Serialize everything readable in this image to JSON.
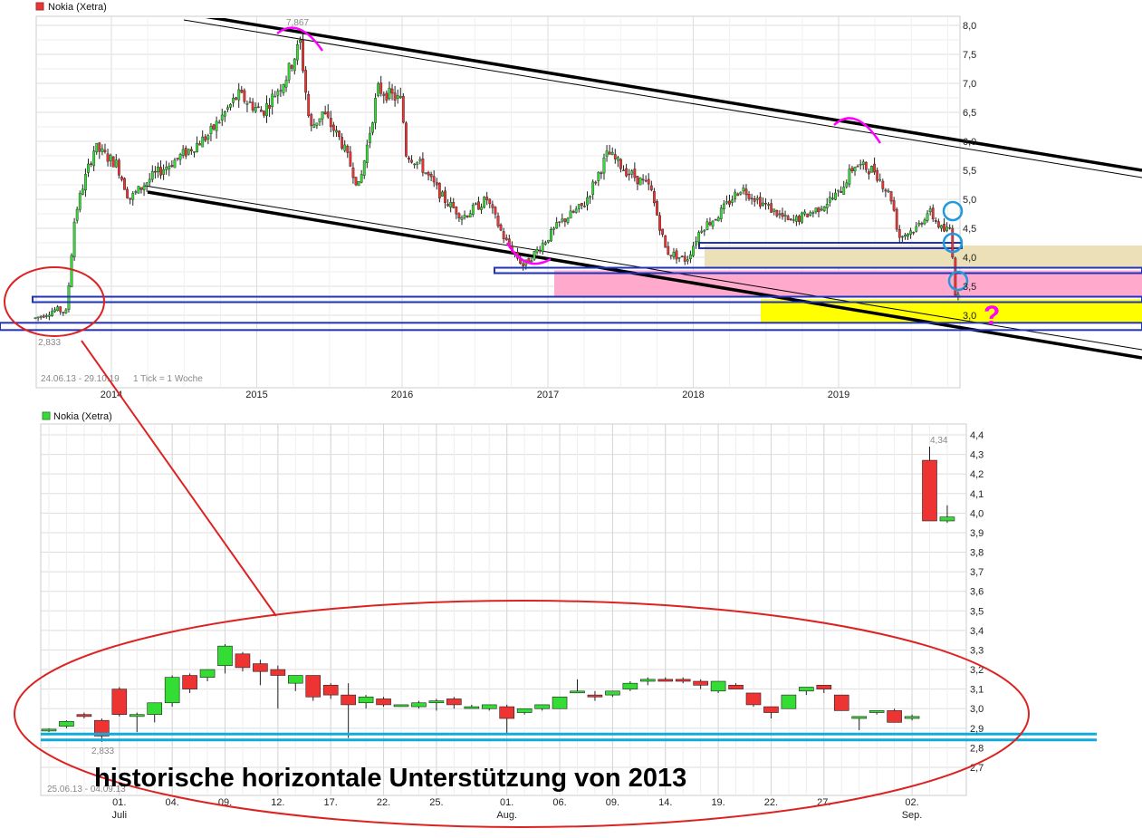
{
  "colors": {
    "up": "#33dd33",
    "down": "#ee3333",
    "channel": "#000000",
    "support": "#2233bb",
    "support_light": "#11aadd",
    "annotation": "#dd2222",
    "marker": "#ff00ff",
    "circle": "#2299dd",
    "zone_beige": "#ece0b8",
    "zone_pink": "#ffaacc",
    "zone_yellow": "#ffff00"
  },
  "chart_data": [
    {
      "type": "candlestick",
      "legend": "Nokia (Xetra)",
      "range_label": "24.06.13 - 29.10.19",
      "interval_label": "1 Tick = 1 Woche",
      "x_ticks": [
        "2014",
        "2015",
        "2016",
        "2017",
        "2018",
        "2019"
      ],
      "y_ticks": [
        "3,0",
        "3,5",
        "4,0",
        "4,5",
        "5,0",
        "5,5",
        "6,0",
        "6,5",
        "7,0",
        "7,5",
        "8,0"
      ],
      "ylim": [
        2.7,
        8.1
      ],
      "high_label": "7,867",
      "low_label": "2,833",
      "question_mark": "?",
      "support_levels": [
        4.25,
        3.82,
        3.32,
        2.87
      ],
      "anchors": [
        [
          "2013-06-24",
          2.95
        ],
        [
          "2013-08-15",
          3.1
        ],
        [
          "2013-09-10",
          3.05
        ],
        [
          "2013-10-01",
          4.7
        ],
        [
          "2013-10-20",
          5.2
        ],
        [
          "2013-11-20",
          5.9
        ],
        [
          "2014-01-15",
          5.6
        ],
        [
          "2014-02-15",
          5.0
        ],
        [
          "2014-04-15",
          5.4
        ],
        [
          "2014-06-15",
          5.7
        ],
        [
          "2014-09-01",
          6.1
        ],
        [
          "2014-11-15",
          6.8
        ],
        [
          "2015-01-15",
          6.5
        ],
        [
          "2015-03-15",
          7.1
        ],
        [
          "2015-04-20",
          7.7
        ],
        [
          "2015-05-15",
          6.2
        ],
        [
          "2015-06-15",
          6.5
        ],
        [
          "2015-08-01",
          6.0
        ],
        [
          "2015-09-15",
          5.2
        ],
        [
          "2015-11-01",
          6.9
        ],
        [
          "2015-12-31",
          6.7
        ],
        [
          "2016-01-10",
          5.8
        ],
        [
          "2016-02-15",
          5.6
        ],
        [
          "2016-04-15",
          5.0
        ],
        [
          "2016-06-01",
          4.7
        ],
        [
          "2016-08-01",
          5.0
        ],
        [
          "2016-09-15",
          4.3
        ],
        [
          "2016-11-01",
          3.85
        ],
        [
          "2016-12-15",
          4.2
        ],
        [
          "2017-02-01",
          4.6
        ],
        [
          "2017-04-01",
          4.9
        ],
        [
          "2017-06-01",
          5.8
        ],
        [
          "2017-07-15",
          5.5
        ],
        [
          "2017-09-15",
          5.2
        ],
        [
          "2017-10-25",
          4.1
        ],
        [
          "2017-12-15",
          3.95
        ],
        [
          "2018-01-20",
          4.5
        ],
        [
          "2018-03-01",
          4.7
        ],
        [
          "2018-05-01",
          5.2
        ],
        [
          "2018-07-01",
          4.9
        ],
        [
          "2018-09-01",
          4.6
        ],
        [
          "2018-11-01",
          4.8
        ],
        [
          "2019-01-01",
          5.1
        ],
        [
          "2019-02-10",
          5.6
        ],
        [
          "2019-04-01",
          5.5
        ],
        [
          "2019-05-15",
          5.0
        ],
        [
          "2019-06-01",
          4.35
        ],
        [
          "2019-07-15",
          4.5
        ],
        [
          "2019-08-15",
          4.8
        ],
        [
          "2019-09-20",
          4.45
        ],
        [
          "2019-10-10",
          4.5
        ],
        [
          "2019-10-20",
          3.4
        ],
        [
          "2019-10-29",
          3.3
        ]
      ]
    },
    {
      "type": "candlestick",
      "legend": "Nokia (Xetra)",
      "range_label": "25.06.13 - 04.09.13",
      "x_ticks": [
        "01.",
        "04.",
        "09.",
        "12.",
        "17.",
        "22.",
        "25.",
        "01.",
        "06.",
        "09.",
        "14.",
        "19.",
        "22.",
        "27.",
        "02."
      ],
      "x_months": [
        "Juli",
        "Aug.",
        "Sep."
      ],
      "y_ticks": [
        "2,7",
        "2,8",
        "2,9",
        "3,0",
        "3,1",
        "3,2",
        "3,3",
        "3,4",
        "3,5",
        "3,6",
        "3,7",
        "3,8",
        "3,9",
        "4,0",
        "4,1",
        "4,2",
        "4,3",
        "4,4"
      ],
      "ylim": [
        2.68,
        4.42
      ],
      "high_label": "4,34",
      "low_label": "2,833",
      "candles": [
        {
          "o": 2.89,
          "h": 2.9,
          "l": 2.88,
          "c": 2.895
        },
        {
          "o": 2.91,
          "h": 2.94,
          "l": 2.9,
          "c": 2.935
        },
        {
          "o": 2.97,
          "h": 2.98,
          "l": 2.95,
          "c": 2.96
        },
        {
          "o": 2.94,
          "h": 2.95,
          "l": 2.83,
          "c": 2.86
        },
        {
          "o": 3.1,
          "h": 3.11,
          "l": 2.96,
          "c": 2.97
        },
        {
          "o": 2.96,
          "h": 2.98,
          "l": 2.88,
          "c": 2.97
        },
        {
          "o": 2.97,
          "h": 3.03,
          "l": 2.93,
          "c": 3.03
        },
        {
          "o": 3.03,
          "h": 3.17,
          "l": 3.01,
          "c": 3.16
        },
        {
          "o": 3.17,
          "h": 3.18,
          "l": 3.08,
          "c": 3.1
        },
        {
          "o": 3.16,
          "h": 3.2,
          "l": 3.14,
          "c": 3.2
        },
        {
          "o": 3.22,
          "h": 3.33,
          "l": 3.18,
          "c": 3.32
        },
        {
          "o": 3.28,
          "h": 3.29,
          "l": 3.19,
          "c": 3.21
        },
        {
          "o": 3.23,
          "h": 3.25,
          "l": 3.12,
          "c": 3.19
        },
        {
          "o": 3.2,
          "h": 3.22,
          "l": 3.0,
          "c": 3.17
        },
        {
          "o": 3.13,
          "h": 3.17,
          "l": 3.09,
          "c": 3.17
        },
        {
          "o": 3.17,
          "h": 3.17,
          "l": 3.04,
          "c": 3.06
        },
        {
          "o": 3.12,
          "h": 3.13,
          "l": 3.05,
          "c": 3.07
        },
        {
          "o": 3.07,
          "h": 3.13,
          "l": 2.85,
          "c": 3.02
        },
        {
          "o": 3.03,
          "h": 3.07,
          "l": 3.0,
          "c": 3.06
        },
        {
          "o": 3.05,
          "h": 3.06,
          "l": 3.01,
          "c": 3.02
        },
        {
          "o": 3.02,
          "h": 3.02,
          "l": 3.01,
          "c": 3.02
        },
        {
          "o": 3.01,
          "h": 3.04,
          "l": 3.0,
          "c": 3.03
        },
        {
          "o": 3.03,
          "h": 3.05,
          "l": 2.99,
          "c": 3.04
        },
        {
          "o": 3.05,
          "h": 3.06,
          "l": 3.0,
          "c": 3.02
        },
        {
          "o": 3.01,
          "h": 3.02,
          "l": 3.0,
          "c": 3.01
        },
        {
          "o": 3.0,
          "h": 3.02,
          "l": 2.99,
          "c": 3.02
        },
        {
          "o": 3.01,
          "h": 3.02,
          "l": 2.87,
          "c": 2.95
        },
        {
          "o": 2.98,
          "h": 3.0,
          "l": 2.97,
          "c": 3.0
        },
        {
          "o": 3.0,
          "h": 3.02,
          "l": 2.99,
          "c": 3.02
        },
        {
          "o": 3.0,
          "h": 3.06,
          "l": 3.0,
          "c": 3.06
        },
        {
          "o": 3.09,
          "h": 3.15,
          "l": 3.08,
          "c": 3.09
        },
        {
          "o": 3.07,
          "h": 3.09,
          "l": 3.04,
          "c": 3.06
        },
        {
          "o": 3.07,
          "h": 3.09,
          "l": 3.06,
          "c": 3.09
        },
        {
          "o": 3.1,
          "h": 3.14,
          "l": 3.09,
          "c": 3.13
        },
        {
          "o": 3.14,
          "h": 3.16,
          "l": 3.12,
          "c": 3.15
        },
        {
          "o": 3.15,
          "h": 3.16,
          "l": 3.14,
          "c": 3.14
        },
        {
          "o": 3.15,
          "h": 3.16,
          "l": 3.13,
          "c": 3.14
        },
        {
          "o": 3.14,
          "h": 3.15,
          "l": 3.1,
          "c": 3.12
        },
        {
          "o": 3.09,
          "h": 3.14,
          "l": 3.08,
          "c": 3.14
        },
        {
          "o": 3.12,
          "h": 3.13,
          "l": 3.1,
          "c": 3.1
        },
        {
          "o": 3.08,
          "h": 3.08,
          "l": 3.01,
          "c": 3.02
        },
        {
          "o": 3.01,
          "h": 3.01,
          "l": 2.95,
          "c": 2.98
        },
        {
          "o": 3.0,
          "h": 3.07,
          "l": 3.0,
          "c": 3.07
        },
        {
          "o": 3.09,
          "h": 3.11,
          "l": 3.07,
          "c": 3.11
        },
        {
          "o": 3.12,
          "h": 3.12,
          "l": 3.08,
          "c": 3.1
        },
        {
          "o": 3.07,
          "h": 3.07,
          "l": 2.99,
          "c": 2.99
        },
        {
          "o": 2.95,
          "h": 2.96,
          "l": 2.89,
          "c": 2.96
        },
        {
          "o": 2.98,
          "h": 2.99,
          "l": 2.97,
          "c": 2.99
        },
        {
          "o": 2.99,
          "h": 3.0,
          "l": 2.93,
          "c": 2.93
        },
        {
          "o": 2.95,
          "h": 2.97,
          "l": 2.94,
          "c": 2.96
        },
        {
          "o": 4.27,
          "h": 4.34,
          "l": 3.96,
          "c": 3.96
        },
        {
          "o": 3.96,
          "h": 4.04,
          "l": 3.95,
          "c": 3.98
        }
      ],
      "support_levels": [
        2.87,
        2.84
      ]
    }
  ],
  "annotation": {
    "text": "historische horizontale Unterstützung von 2013"
  }
}
